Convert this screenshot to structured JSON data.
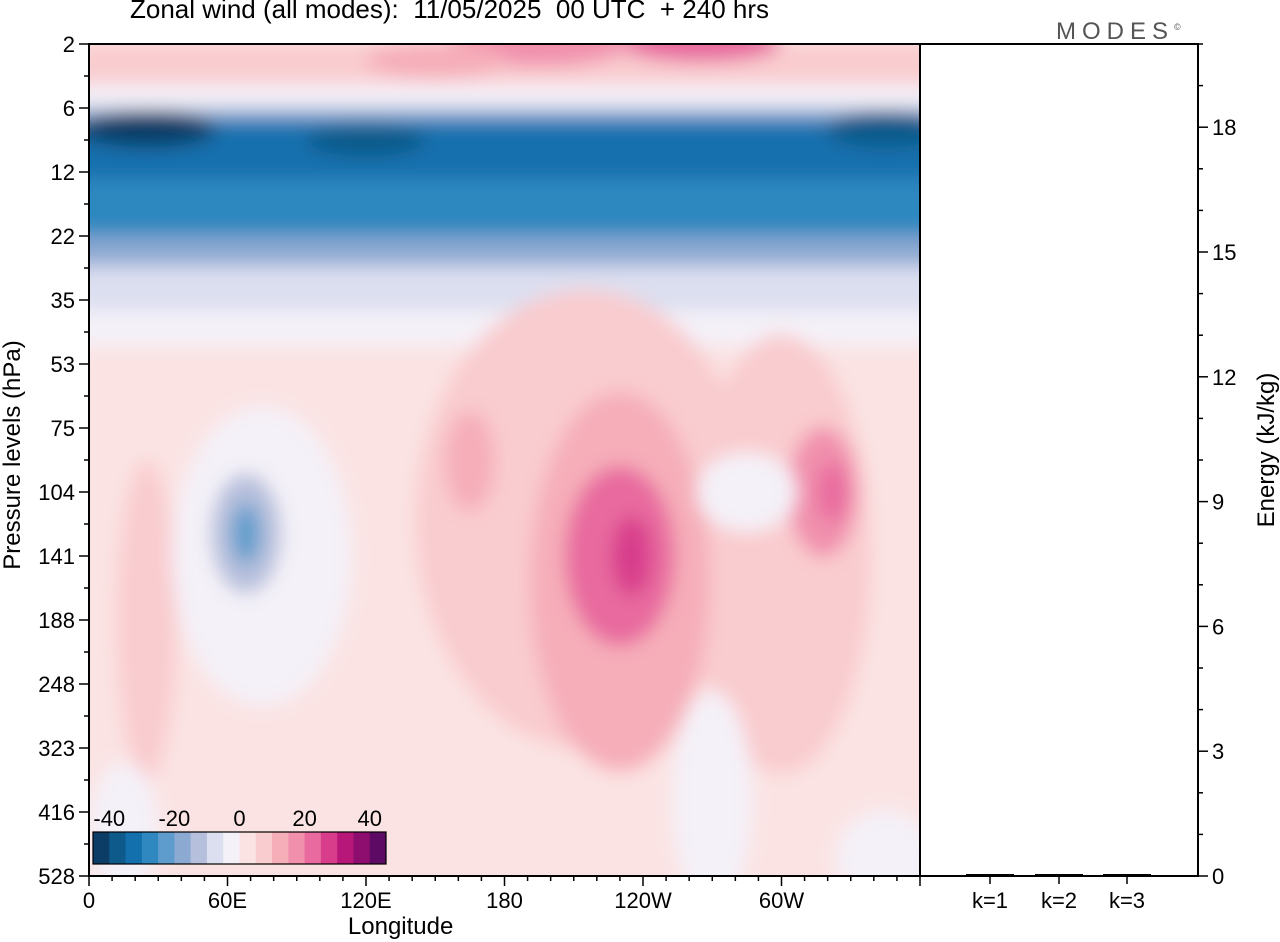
{
  "title": "Zonal wind (all modes):  11/05/2025  00 UTC  + 240 hrs",
  "logo_text": "MODES",
  "logo_mark": "©",
  "chart_data": [
    {
      "type": "heatmap",
      "title": "Zonal wind (all modes):  11/05/2025  00 UTC  + 240 hrs",
      "xlabel": "Longitude",
      "ylabel": "Pressure levels (hPa)",
      "x_ticks": [
        "0",
        "60E",
        "120E",
        "180",
        "120W",
        "60W"
      ],
      "x_tick_degrees": [
        0,
        60,
        120,
        180,
        240,
        300
      ],
      "xlim_degrees": [
        0,
        360
      ],
      "y_ticks": [
        "2",
        "6",
        "12",
        "22",
        "35",
        "53",
        "75",
        "104",
        "141",
        "188",
        "248",
        "323",
        "416",
        "528"
      ],
      "y_scale": "pressure levels, equally spaced, top 2 hPa to bottom 528 hPa",
      "colorbar": {
        "tick_labels": [
          "-40",
          "-20",
          "0",
          "20",
          "40"
        ],
        "range": [
          -45,
          45
        ],
        "step": 5,
        "colors": [
          "#0b3d66",
          "#0e5a8a",
          "#1470ad",
          "#2f88c0",
          "#5d9ccc",
          "#8ca9d2",
          "#b6bfdc",
          "#dcdff0",
          "#f4f1f8",
          "#fbe3e3",
          "#f9cccf",
          "#f6aeb9",
          "#f190ad",
          "#e86a9f",
          "#d83d8c",
          "#b8177a",
          "#8e0e6f",
          "#5c0a63"
        ]
      },
      "features": [
        {
          "label": "stratospheric easterly core",
          "pressure_hPa": 8,
          "value": -40
        },
        {
          "label": "upper westerly band",
          "pressure_hPa": 2,
          "value": 20
        },
        {
          "label": "easterly cell near 70E",
          "pressure_hPa": 120,
          "value": -25
        },
        {
          "label": "westerly jet near 120W",
          "pressure_hPa": 141,
          "value": 25
        },
        {
          "label": "westerly maximum near 50W",
          "pressure_hPa": 104,
          "value": 20
        }
      ]
    },
    {
      "type": "bar",
      "categories": [
        "k=1",
        "k=2",
        "k=3"
      ],
      "values": [
        0.02,
        0.01,
        0.01
      ],
      "ylabel": "Energy (kJ/kg)",
      "ylim": [
        0,
        20
      ],
      "y_ticks": [
        0,
        3,
        6,
        9,
        12,
        15,
        18
      ]
    }
  ]
}
